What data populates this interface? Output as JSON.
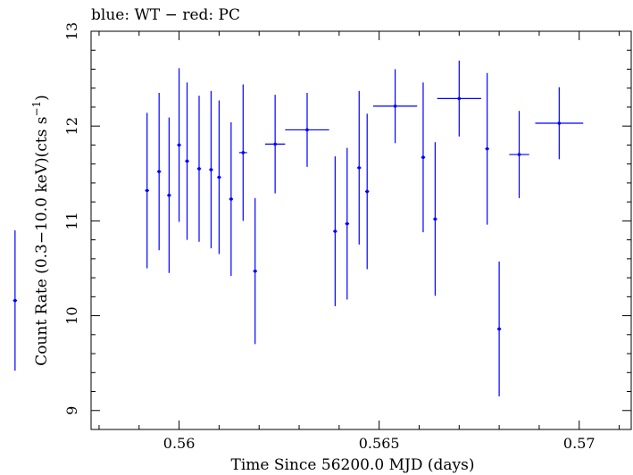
{
  "chart_data": {
    "type": "scatter",
    "title": "blue: WT − red: PC",
    "xlabel": "Time Since 56200.0 MJD (days)",
    "ylabel": "Count Rate (0.3−10.0 keV)(cts s",
    "ylabel_exp": "−1",
    "ylabel_tail": ")",
    "xlim": [
      0.5578,
      0.5713
    ],
    "ylim": [
      8.8,
      13.0
    ],
    "grid": false,
    "x_ticks": [
      0.56,
      0.565,
      0.57
    ],
    "x_tick_labels": [
      "0.56",
      "0.565",
      "0.57"
    ],
    "y_ticks": [
      9,
      10,
      11,
      12,
      13
    ],
    "y_tick_labels": [
      "9",
      "10",
      "11",
      "12",
      "13"
    ],
    "series": [
      {
        "color": "#0000ff",
        "points": [
          {
            "x": 0.5559,
            "y": 10.16,
            "xerr": 5e-05,
            "yerr_lo": 0.74,
            "yerr_hi": 0.74
          },
          {
            "x": 0.5592,
            "y": 11.32,
            "xerr": 5e-05,
            "yerr_lo": 0.82,
            "yerr_hi": 0.82
          },
          {
            "x": 0.5595,
            "y": 11.52,
            "xerr": 5e-05,
            "yerr_lo": 0.83,
            "yerr_hi": 0.83
          },
          {
            "x": 0.55975,
            "y": 11.27,
            "xerr": 5e-05,
            "yerr_lo": 0.82,
            "yerr_hi": 0.82
          },
          {
            "x": 0.56,
            "y": 11.8,
            "xerr": 5e-05,
            "yerr_lo": 0.81,
            "yerr_hi": 0.81
          },
          {
            "x": 0.5602,
            "y": 11.63,
            "xerr": 5e-05,
            "yerr_lo": 0.83,
            "yerr_hi": 0.83
          },
          {
            "x": 0.5605,
            "y": 11.55,
            "xerr": 5e-05,
            "yerr_lo": 0.77,
            "yerr_hi": 0.77
          },
          {
            "x": 0.5608,
            "y": 11.54,
            "xerr": 5e-05,
            "yerr_lo": 0.83,
            "yerr_hi": 0.83
          },
          {
            "x": 0.561,
            "y": 11.46,
            "xerr": 5e-05,
            "yerr_lo": 0.81,
            "yerr_hi": 0.81
          },
          {
            "x": 0.5613,
            "y": 11.23,
            "xerr": 5e-05,
            "yerr_lo": 0.81,
            "yerr_hi": 0.81
          },
          {
            "x": 0.5616,
            "y": 11.72,
            "xerr": 0.0001,
            "yerr_lo": 0.72,
            "yerr_hi": 0.72
          },
          {
            "x": 0.5619,
            "y": 10.47,
            "xerr": 5e-05,
            "yerr_lo": 0.77,
            "yerr_hi": 0.77
          },
          {
            "x": 0.5624,
            "y": 11.81,
            "xerr": 0.00025,
            "yerr_lo": 0.52,
            "yerr_hi": 0.52
          },
          {
            "x": 0.5632,
            "y": 11.96,
            "xerr": 0.00055,
            "yerr_lo": 0.39,
            "yerr_hi": 0.39
          },
          {
            "x": 0.5639,
            "y": 10.89,
            "xerr": 5e-05,
            "yerr_lo": 0.79,
            "yerr_hi": 0.79
          },
          {
            "x": 0.5642,
            "y": 10.97,
            "xerr": 5e-05,
            "yerr_lo": 0.8,
            "yerr_hi": 0.8
          },
          {
            "x": 0.5645,
            "y": 11.56,
            "xerr": 5e-05,
            "yerr_lo": 0.81,
            "yerr_hi": 0.81
          },
          {
            "x": 0.5647,
            "y": 11.31,
            "xerr": 5e-05,
            "yerr_lo": 0.82,
            "yerr_hi": 0.82
          },
          {
            "x": 0.5654,
            "y": 12.21,
            "xerr": 0.00055,
            "yerr_lo": 0.39,
            "yerr_hi": 0.39
          },
          {
            "x": 0.5661,
            "y": 11.67,
            "xerr": 5e-05,
            "yerr_lo": 0.79,
            "yerr_hi": 0.79
          },
          {
            "x": 0.5664,
            "y": 11.02,
            "xerr": 5e-05,
            "yerr_lo": 0.81,
            "yerr_hi": 0.81
          },
          {
            "x": 0.567,
            "y": 12.29,
            "xerr": 0.00055,
            "yerr_lo": 0.4,
            "yerr_hi": 0.4
          },
          {
            "x": 0.5677,
            "y": 11.76,
            "xerr": 5e-05,
            "yerr_lo": 0.8,
            "yerr_hi": 0.8
          },
          {
            "x": 0.568,
            "y": 9.86,
            "xerr": 5e-05,
            "yerr_lo": 0.71,
            "yerr_hi": 0.71
          },
          {
            "x": 0.5685,
            "y": 11.7,
            "xerr": 0.00025,
            "yerr_lo": 0.46,
            "yerr_hi": 0.46
          },
          {
            "x": 0.5695,
            "y": 12.03,
            "xerr": 0.0006,
            "yerr_lo": 0.38,
            "yerr_hi": 0.38
          }
        ]
      }
    ]
  }
}
